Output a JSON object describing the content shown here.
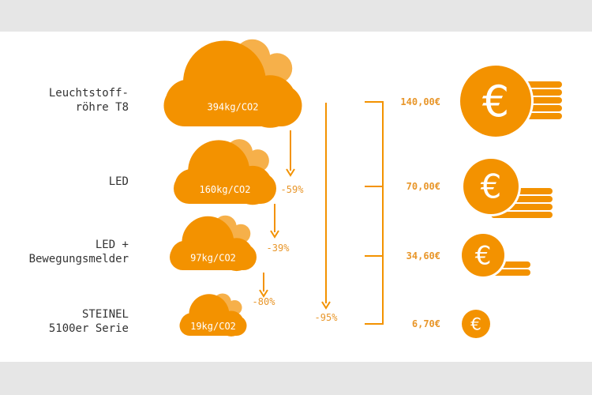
{
  "rows": [
    {
      "label": [
        "Leuchtstoff-",
        "röhre T8"
      ],
      "co2": "394kg/CO2",
      "cost": "140,00€"
    },
    {
      "label": [
        "LED"
      ],
      "co2": "160kg/CO2",
      "cost": "70,00€"
    },
    {
      "label": [
        "LED +",
        "Bewegungsmelder"
      ],
      "co2": "97kg/CO2",
      "cost": "34,60€"
    },
    {
      "label": [
        "STEINEL",
        "5100er Serie"
      ],
      "co2": "19kg/CO2",
      "cost": "6,70€"
    }
  ],
  "reductions": [
    "-59%",
    "-39%",
    "-80%"
  ],
  "total_reduction": "-95%",
  "coin_symbol": "€"
}
